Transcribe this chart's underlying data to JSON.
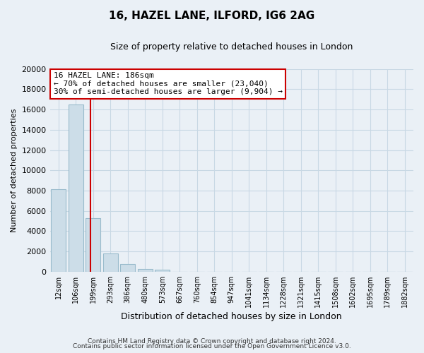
{
  "title": "16, HAZEL LANE, ILFORD, IG6 2AG",
  "subtitle": "Size of property relative to detached houses in London",
  "xlabel": "Distribution of detached houses by size in London",
  "ylabel": "Number of detached properties",
  "categories": [
    "12sqm",
    "106sqm",
    "199sqm",
    "293sqm",
    "386sqm",
    "480sqm",
    "573sqm",
    "667sqm",
    "760sqm",
    "854sqm",
    "947sqm",
    "1041sqm",
    "1134sqm",
    "1228sqm",
    "1321sqm",
    "1415sqm",
    "1508sqm",
    "1602sqm",
    "1695sqm",
    "1789sqm",
    "1882sqm"
  ],
  "values": [
    8100,
    16500,
    5300,
    1800,
    750,
    280,
    200,
    0,
    0,
    0,
    0,
    0,
    0,
    0,
    0,
    0,
    0,
    0,
    0,
    0,
    0
  ],
  "bar_color": "#ccdde8",
  "bar_edge_color": "#99bbcc",
  "property_label": "16 HAZEL LANE: 186sqm",
  "annotation_line1": "← 70% of detached houses are smaller (23,040)",
  "annotation_line2": "30% of semi-detached houses are larger (9,904) →",
  "annotation_box_color": "#ffffff",
  "annotation_box_edge_color": "#cc0000",
  "property_line_color": "#cc0000",
  "ylim": [
    0,
    20000
  ],
  "yticks": [
    0,
    2000,
    4000,
    6000,
    8000,
    10000,
    12000,
    14000,
    16000,
    18000,
    20000
  ],
  "grid_color": "#c8d8e4",
  "bg_color": "#eaf0f6",
  "footnote1": "Contains HM Land Registry data © Crown copyright and database right 2024.",
  "footnote2": "Contains public sector information licensed under the Open Government Licence v3.0."
}
